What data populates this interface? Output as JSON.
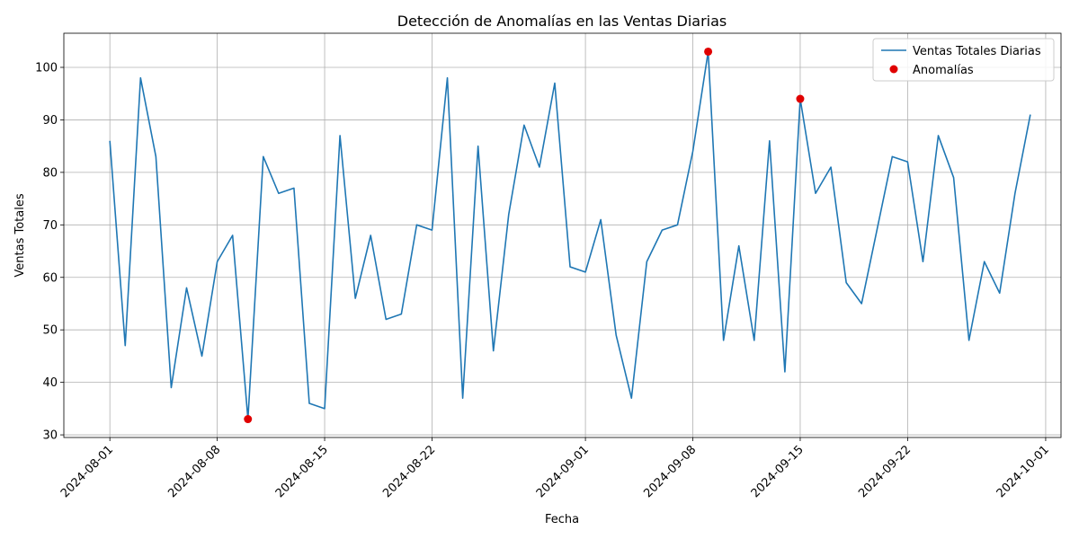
{
  "chart_data": {
    "type": "line",
    "title": "Detección de Anomalías en las Ventas Diarias",
    "xlabel": "Fecha",
    "ylabel": "Ventas Totales",
    "x_start": "2024-08-01",
    "xlim": [
      "2024-07-29",
      "2024-10-02"
    ],
    "ylim": [
      29.5,
      106.5
    ],
    "x_ticks": [
      "2024-08-01",
      "2024-08-08",
      "2024-08-15",
      "2024-08-22",
      "2024-09-01",
      "2024-09-08",
      "2024-09-15",
      "2024-09-22",
      "2024-10-01"
    ],
    "y_ticks": [
      30,
      40,
      50,
      60,
      70,
      80,
      90,
      100
    ],
    "grid": true,
    "legend_position": "top-right",
    "series": [
      {
        "name": "Ventas Totales Diarias",
        "type": "line",
        "color": "#1f77b4",
        "values": [
          86,
          47,
          98,
          83,
          39,
          58,
          45,
          63,
          68,
          33,
          83,
          76,
          77,
          36,
          35,
          87,
          56,
          68,
          52,
          53,
          70,
          69,
          98,
          37,
          85,
          46,
          72,
          89,
          81,
          97,
          62,
          61,
          71,
          49,
          37,
          63,
          69,
          70,
          84,
          103,
          48,
          66,
          48,
          86,
          42,
          94,
          76,
          81,
          59,
          55,
          69,
          83,
          82,
          63,
          87,
          79,
          48,
          63,
          57,
          76,
          91
        ]
      },
      {
        "name": "Anomalías",
        "type": "scatter",
        "color": "#e00000",
        "points": [
          {
            "x": "2024-08-10",
            "y": 33
          },
          {
            "x": "2024-09-09",
            "y": 103
          },
          {
            "x": "2024-09-15",
            "y": 94
          }
        ]
      }
    ]
  }
}
